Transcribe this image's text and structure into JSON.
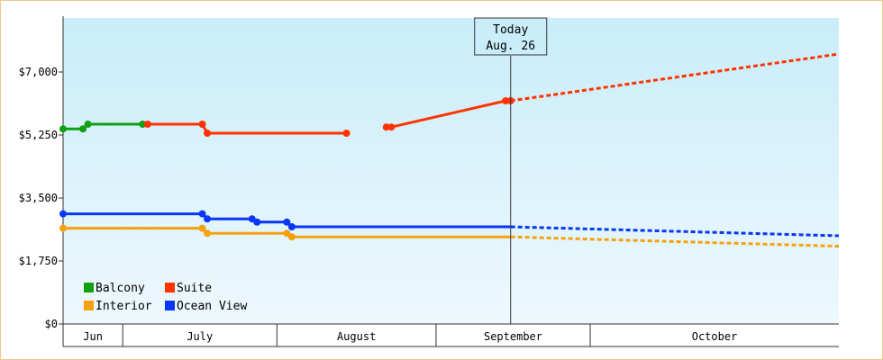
{
  "chart_data": {
    "type": "line",
    "title": "",
    "xlabel": "",
    "ylabel": "",
    "ylim": [
      0,
      8500
    ],
    "y_ticks": [
      {
        "value": 0,
        "label": "$0"
      },
      {
        "value": 1750,
        "label": "$1,750"
      },
      {
        "value": 3500,
        "label": "$3,500"
      },
      {
        "value": 5250,
        "label": "$5,250"
      },
      {
        "value": 7000,
        "label": "$7,000"
      }
    ],
    "x_range": [
      "2024-05-28",
      "2024-10-31"
    ],
    "months": [
      {
        "label": "Jun",
        "start": "2024-05-28",
        "end": "2024-06-09"
      },
      {
        "label": "July",
        "start": "2024-06-09",
        "end": "2024-07-10"
      },
      {
        "label": "August",
        "start": "2024-07-10",
        "end": "2024-08-11"
      },
      {
        "label": "September",
        "start": "2024-08-11",
        "end": "2024-09-11"
      },
      {
        "label": "October",
        "start": "2024-09-11",
        "end": "2024-10-31"
      }
    ],
    "today": {
      "date": "2024-08-26",
      "line1": "Today",
      "line2": "Aug. 26"
    },
    "grid": false,
    "legend_position": "bottom-left",
    "legend": [
      {
        "label": "Balcony",
        "color": "#11a011"
      },
      {
        "label": "Suite",
        "color": "#ff3300"
      },
      {
        "label": "Interior",
        "color": "#f5a10d"
      },
      {
        "label": "Ocean View",
        "color": "#0a36f5"
      }
    ],
    "series": [
      {
        "name": "Balcony",
        "color": "#11a011",
        "segments": [
          {
            "style": "step",
            "points": [
              [
                "2024-05-28",
                5420
              ],
              [
                "2024-06-01",
                5420
              ],
              [
                "2024-06-02",
                5550
              ],
              [
                "2024-06-10",
                5550
              ],
              [
                "2024-06-13",
                5550
              ],
              [
                "2024-06-14",
                5550
              ]
            ]
          }
        ],
        "markers": [
          [
            "2024-05-28",
            5420
          ],
          [
            "2024-06-01",
            5420
          ],
          [
            "2024-06-02",
            5550
          ],
          [
            "2024-06-13",
            5550
          ]
        ]
      },
      {
        "name": "Suite",
        "color": "#ff3300",
        "segments": [
          {
            "style": "step",
            "points": [
              [
                "2024-06-14",
                5550
              ],
              [
                "2024-06-25",
                5550
              ],
              [
                "2024-06-26",
                5300
              ],
              [
                "2024-07-24",
                5300
              ]
            ]
          },
          {
            "style": "line",
            "points": [
              [
                "2024-08-01",
                5470
              ],
              [
                "2024-08-02",
                5470
              ],
              [
                "2024-08-25",
                6200
              ],
              [
                "2024-08-26",
                6200
              ]
            ]
          },
          {
            "style": "dashed",
            "points": [
              [
                "2024-08-26",
                6200
              ],
              [
                "2024-10-31",
                7500
              ]
            ]
          }
        ],
        "markers": [
          [
            "2024-06-14",
            5550
          ],
          [
            "2024-06-25",
            5550
          ],
          [
            "2024-06-26",
            5300
          ],
          [
            "2024-07-24",
            5300
          ],
          [
            "2024-08-01",
            5470
          ],
          [
            "2024-08-02",
            5470
          ],
          [
            "2024-08-25",
            6200
          ],
          [
            "2024-08-26",
            6200
          ]
        ]
      },
      {
        "name": "Ocean View",
        "color": "#0a36f5",
        "segments": [
          {
            "style": "step",
            "points": [
              [
                "2024-05-28",
                3060
              ],
              [
                "2024-06-25",
                3060
              ],
              [
                "2024-06-26",
                2920
              ],
              [
                "2024-07-05",
                2920
              ],
              [
                "2024-07-06",
                2830
              ],
              [
                "2024-07-12",
                2830
              ],
              [
                "2024-07-13",
                2700
              ],
              [
                "2024-08-26",
                2700
              ]
            ]
          },
          {
            "style": "dashed",
            "points": [
              [
                "2024-08-26",
                2700
              ],
              [
                "2024-10-31",
                2450
              ]
            ]
          }
        ],
        "markers": [
          [
            "2024-05-28",
            3060
          ],
          [
            "2024-06-25",
            3060
          ],
          [
            "2024-06-26",
            2920
          ],
          [
            "2024-07-05",
            2920
          ],
          [
            "2024-07-06",
            2830
          ],
          [
            "2024-07-12",
            2830
          ],
          [
            "2024-07-13",
            2700
          ]
        ]
      },
      {
        "name": "Interior",
        "color": "#f5a10d",
        "segments": [
          {
            "style": "step",
            "points": [
              [
                "2024-05-28",
                2660
              ],
              [
                "2024-06-25",
                2660
              ],
              [
                "2024-06-26",
                2520
              ],
              [
                "2024-07-12",
                2520
              ],
              [
                "2024-07-13",
                2420
              ],
              [
                "2024-08-26",
                2420
              ]
            ]
          },
          {
            "style": "dashed",
            "points": [
              [
                "2024-08-26",
                2420
              ],
              [
                "2024-10-31",
                2160
              ]
            ]
          }
        ],
        "markers": [
          [
            "2024-05-28",
            2660
          ],
          [
            "2024-06-25",
            2660
          ],
          [
            "2024-06-26",
            2520
          ],
          [
            "2024-07-12",
            2520
          ],
          [
            "2024-07-13",
            2420
          ]
        ]
      }
    ]
  }
}
